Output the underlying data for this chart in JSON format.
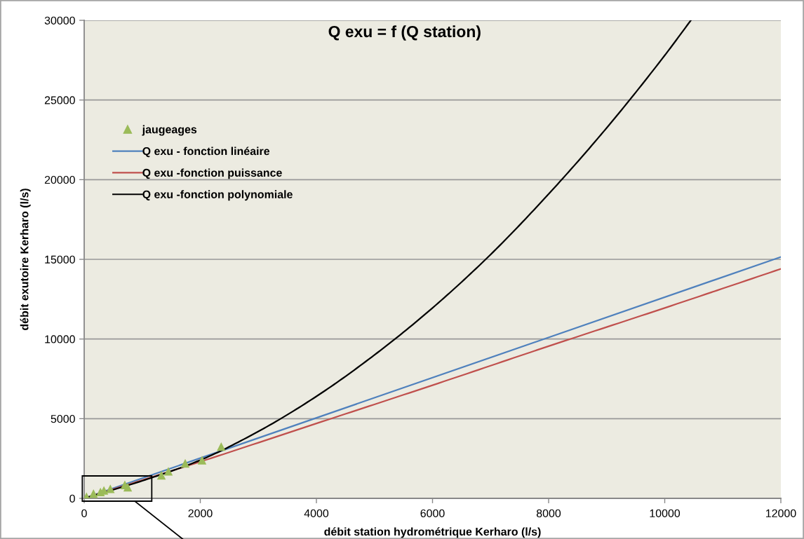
{
  "chart_data": {
    "type": "scatter",
    "title": "Q exu = f (Q station)",
    "xlabel": "débit station hydrométrique Kerharo (l/s)",
    "ylabel": "débit exutoire Kerharo (l/s)",
    "xlim": [
      0,
      12000
    ],
    "ylim": [
      0,
      30000
    ],
    "xticks": [
      0,
      2000,
      4000,
      6000,
      8000,
      10000,
      12000
    ],
    "yticks": [
      0,
      5000,
      10000,
      15000,
      20000,
      25000,
      30000
    ],
    "grid": "y",
    "legend": "top left",
    "series": [
      {
        "name": "jaugeages",
        "marker": "triangle",
        "color": "#9bbb59",
        "x": [
          40,
          160,
          280,
          340,
          450,
          700,
          750,
          1330,
          1450,
          1740,
          2030,
          2360
        ],
        "values": [
          100,
          300,
          400,
          500,
          600,
          850,
          700,
          1450,
          1700,
          2200,
          2400,
          3250
        ]
      },
      {
        "name": "Q exu - fonction linéaire",
        "type": "line",
        "marker": "none",
        "color": "#4f81bd",
        "x": [
          0,
          12000
        ],
        "values": [
          0,
          15150
        ]
      },
      {
        "name": "Q exu -fonction puissance",
        "type": "line",
        "marker": "none",
        "color": "#c0504d",
        "x": [
          0,
          2000,
          4000,
          6000,
          8000,
          10000,
          12000
        ],
        "values": [
          0,
          2300,
          4700,
          7100,
          9550,
          11950,
          14400
        ]
      },
      {
        "name": "Q exu -fonction polynomiale",
        "type": "line",
        "marker": "none",
        "color": "#000000",
        "x": [
          0,
          1000,
          2000,
          3000,
          4000,
          5000,
          6000,
          7000,
          8000,
          9000,
          10000,
          10450
        ],
        "values": [
          0,
          1100,
          2400,
          4200,
          6400,
          9000,
          11950,
          15300,
          19100,
          23250,
          27800,
          30000
        ]
      }
    ]
  }
}
